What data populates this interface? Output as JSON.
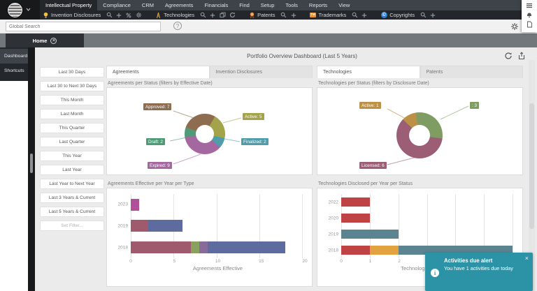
{
  "app": {
    "menu": [
      "Intellectual Property",
      "Compliance",
      "CRM",
      "Agreements",
      "Financials",
      "Find",
      "Setup",
      "Tools",
      "Reports",
      "View"
    ],
    "active_menu": "Intellectual Property"
  },
  "toolbar": {
    "groups": [
      {
        "icon": "lightbulb",
        "label": "Invention Disclosures",
        "actions": [
          "search",
          "add",
          "percent",
          "settings"
        ]
      },
      {
        "icon": "tower",
        "label": "Technologies",
        "actions": [
          "search",
          "add",
          "windows",
          "refresh"
        ]
      },
      {
        "icon": "medal",
        "label": "Patents",
        "actions": [
          "search",
          "add"
        ]
      },
      {
        "icon": "trademark",
        "label": "Trademarks",
        "actions": [
          "search",
          "add"
        ]
      },
      {
        "icon": "copyright",
        "label": "Copyrights",
        "actions": [
          "search",
          "add"
        ]
      }
    ]
  },
  "search": {
    "placeholder": "Global Search"
  },
  "tabs": {
    "home": "Home"
  },
  "sidebar": {
    "items": [
      {
        "label": "Dashboard",
        "active": true
      },
      {
        "label": "Shortcuts",
        "active": false
      }
    ]
  },
  "filters": {
    "buttons": [
      "Last 30 Days",
      "Last 30 to Next 30 Days",
      "This Month",
      "Last Month",
      "This Quarter",
      "Last Quarter",
      "This Year",
      "Last Year",
      "Last Year to Next Year",
      "Last 3 Years & Current",
      "Last 5 Years & Current"
    ],
    "disabled_button": "Set Filter..."
  },
  "dashboard": {
    "title": "Portfolio Overview Dashboard (Last 5 Years)"
  },
  "panels": [
    {
      "tabs": [
        {
          "label": "Agreements",
          "active": true
        },
        {
          "label": "Invention Disclosures",
          "active": false
        }
      ]
    },
    {
      "tabs": [
        {
          "label": "Technologies",
          "active": true
        },
        {
          "label": "Patents",
          "active": false
        }
      ]
    }
  ],
  "chart_data": [
    {
      "type": "pie",
      "title": "Agreements per Status (filters by Effective Date)",
      "start_angle": 30,
      "segments": [
        {
          "name": "Active",
          "value": 5,
          "color": "#a3a449",
          "label": "Active: 5"
        },
        {
          "name": "Finalized",
          "value": 2,
          "color": "#4f9cab",
          "label": "Finalized: 2"
        },
        {
          "name": "Expired",
          "value": 9,
          "color": "#a567a0",
          "label": "Expired: 9"
        },
        {
          "name": "Draft",
          "value": 2,
          "color": "#4f9b77",
          "label": "Draft: 2"
        },
        {
          "name": "Approved",
          "value": 7,
          "color": "#8d6c50",
          "label": "Approved: 7"
        }
      ]
    },
    {
      "type": "bar",
      "title": "Agreements Effective per Year per Type",
      "xlabel": "Agreements Effective",
      "xlim": [
        0,
        20
      ],
      "xticks": [
        0,
        5,
        10,
        15,
        20
      ],
      "categories": [
        "2023",
        "2019",
        "2018"
      ],
      "rows": [
        [
          {
            "value": 1,
            "color": "#b0509b"
          }
        ],
        [
          {
            "value": 2,
            "color": "#a05a6e"
          },
          {
            "value": 4,
            "color": "#5d6b9e"
          }
        ],
        [
          {
            "value": 7,
            "color": "#a05a6e"
          },
          {
            "value": 1,
            "color": "#8aa05e"
          },
          {
            "value": 1,
            "color": "#866b9b"
          },
          {
            "value": 9,
            "color": "#5d6b9e"
          }
        ]
      ]
    },
    {
      "type": "pie",
      "title": "Technologies per Status (filters by Disclosure Date)",
      "start_angle": -10,
      "segments": [
        {
          "name": "",
          "value": 3,
          "color": "#7f9c62",
          "label": ": 3"
        },
        {
          "name": "Licensed",
          "value": 6,
          "color": "#9b5e75",
          "label": "Licensed: 6"
        },
        {
          "name": "Active",
          "value": 1,
          "color": "#bd9048",
          "label": "Active: 1"
        }
      ]
    },
    {
      "type": "bar",
      "title": "Technologies Disclosed per Year per Status",
      "xlabel": "Technologies Disclosed",
      "xlim": [
        0,
        6
      ],
      "xticks": [
        0,
        1,
        2,
        3,
        4,
        5,
        6
      ],
      "categories": [
        "2022",
        "2020",
        "2019",
        "2018"
      ],
      "rows": [
        [
          {
            "value": 1,
            "color": "#bf4345"
          }
        ],
        [
          {
            "value": 1,
            "color": "#bf4345"
          }
        ],
        [
          {
            "value": 2,
            "color": "#5b8490"
          }
        ],
        [
          {
            "value": 1,
            "color": "#bf4345"
          },
          {
            "value": 1,
            "color": "#e2a23f"
          },
          {
            "value": 4,
            "color": "#5b8490"
          }
        ]
      ]
    }
  ],
  "alert": {
    "title": "Activities due alert",
    "message": "You have 1 activities due today"
  }
}
